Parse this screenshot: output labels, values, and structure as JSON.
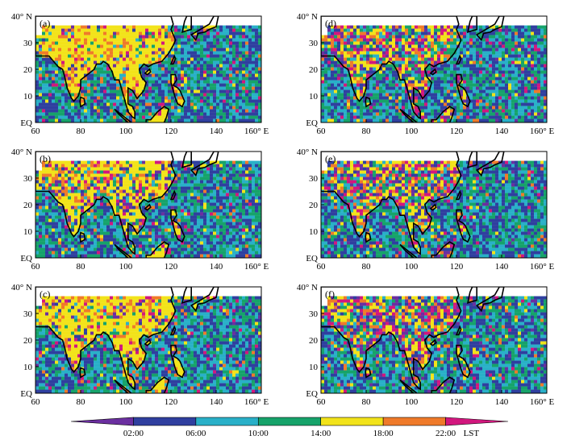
{
  "figure": {
    "panels": [
      {
        "label": "(a)",
        "land_bias": 0.75,
        "ocean_seed": 11
      },
      {
        "label": "(b)",
        "land_bias": 0.45,
        "ocean_seed": 23
      },
      {
        "label": "(c)",
        "land_bias": 0.7,
        "ocean_seed": 37
      },
      {
        "label": "(d)",
        "land_bias": 0.15,
        "ocean_seed": 41
      },
      {
        "label": "(e)",
        "land_bias": 0.15,
        "ocean_seed": 53
      },
      {
        "label": "(f)",
        "land_bias": 0.15,
        "ocean_seed": 67
      }
    ],
    "axes": {
      "x_ticks": [
        "60",
        "80",
        "100",
        "120",
        "140",
        "160° E"
      ],
      "y_ticks": [
        "40° N",
        "30",
        "20",
        "10",
        "EQ"
      ],
      "lon_range": [
        60,
        160
      ],
      "lat_range": [
        0,
        40
      ]
    },
    "colorbar": {
      "labels": [
        "02:00",
        "06:00",
        "10:00",
        "14:00",
        "18:00",
        "22:00"
      ],
      "unit": "LST",
      "colors": [
        "#6b2fa0",
        "#2f3f9f",
        "#29b0c8",
        "#16a36a",
        "#f2e31a",
        "#ef7a2a",
        "#d2177e"
      ]
    }
  }
}
